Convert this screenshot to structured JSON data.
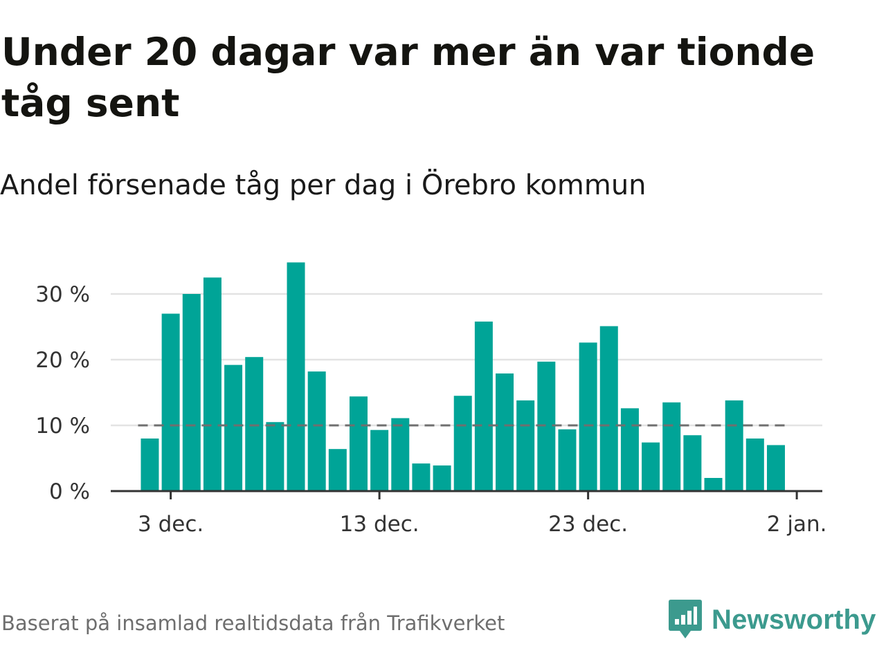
{
  "title": "Under 20 dagar var mer än var tionde tåg sent",
  "subtitle": "Andel försenade tåg per dag i Örebro kommun",
  "footer": {
    "source": "Baserat på insamlad realtidsdata från Trafikverket",
    "brand": "Newsworthy",
    "brand_icon": "newsworthy-logo-icon"
  },
  "colors": {
    "bar": "#00a497",
    "reference_line": "#6f6f6f",
    "grid": "#e3e3e3",
    "axis": "#333333",
    "brand": "#3c9a8e"
  },
  "chart_data": {
    "type": "bar",
    "x": [
      "2020-12-02",
      "2020-12-03",
      "2020-12-04",
      "2020-12-05",
      "2020-12-06",
      "2020-12-07",
      "2020-12-08",
      "2020-12-09",
      "2020-12-10",
      "2020-12-11",
      "2020-12-12",
      "2020-12-13",
      "2020-12-14",
      "2020-12-15",
      "2020-12-16",
      "2020-12-17",
      "2020-12-18",
      "2020-12-19",
      "2020-12-20",
      "2020-12-21",
      "2020-12-22",
      "2020-12-23",
      "2020-12-24",
      "2020-12-25",
      "2020-12-26",
      "2020-12-27",
      "2020-12-28",
      "2020-12-29",
      "2020-12-30",
      "2020-12-31",
      "2021-01-01"
    ],
    "values": [
      8.0,
      27.0,
      30.0,
      32.5,
      19.2,
      20.4,
      10.5,
      34.8,
      18.2,
      6.4,
      14.4,
      9.3,
      11.1,
      4.2,
      3.9,
      14.5,
      25.8,
      17.9,
      13.8,
      19.7,
      9.4,
      22.6,
      25.1,
      12.6,
      7.4,
      13.5,
      8.5,
      2.0,
      13.8,
      8.0,
      7.0
    ],
    "reference_line": {
      "value": 10,
      "style": "dashed"
    },
    "x_ticks": [
      "3 dec.",
      "13 dec.",
      "23 dec.",
      "2 jan."
    ],
    "y_ticks": [
      "0 %",
      "10 %",
      "20 %",
      "30 %"
    ],
    "ylim": [
      0,
      35
    ],
    "grid": true,
    "legend": "none"
  }
}
